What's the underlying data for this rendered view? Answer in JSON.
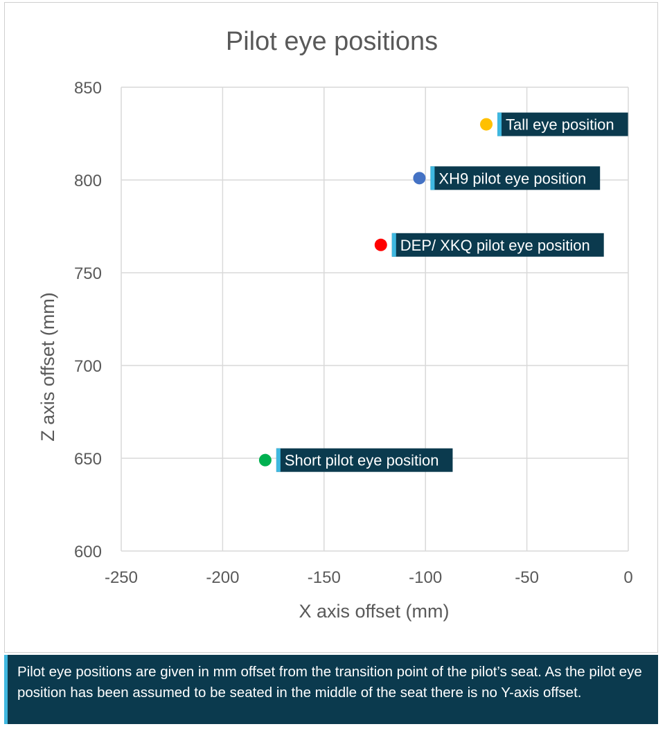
{
  "chart_data": {
    "type": "scatter",
    "title": "Pilot eye positions",
    "xlabel": "X axis offset (mm)",
    "ylabel": "Z axis offset (mm)",
    "xlim": [
      -250,
      0
    ],
    "ylim": [
      600,
      850
    ],
    "xticks": [
      -250,
      -200,
      -150,
      -100,
      -50,
      0
    ],
    "yticks": [
      600,
      650,
      700,
      750,
      800,
      850
    ],
    "grid": true,
    "points": [
      {
        "label": "Tall eye position",
        "x": -70,
        "y": 830,
        "color": "#ffc000"
      },
      {
        "label": "XH9 pilot eye position",
        "x": -103,
        "y": 801,
        "color": "#4472c4"
      },
      {
        "label": "DEP/ XKQ pilot eye position",
        "x": -122,
        "y": 765,
        "color": "#ff0000"
      },
      {
        "label": "Short pilot eye position",
        "x": -179,
        "y": 649,
        "color": "#00b050"
      }
    ]
  },
  "colors": {
    "callout_bg": "#0b3a4e",
    "callout_accent": "#3fb8e0",
    "grid": "#d9d9d9",
    "text": "#595959"
  },
  "note": {
    "text": "Pilot eye positions are given in mm offset from the transition point of the pilot’s seat. As the pilot eye position has been assumed to be seated in the middle of the seat there is no Y-axis offset."
  }
}
